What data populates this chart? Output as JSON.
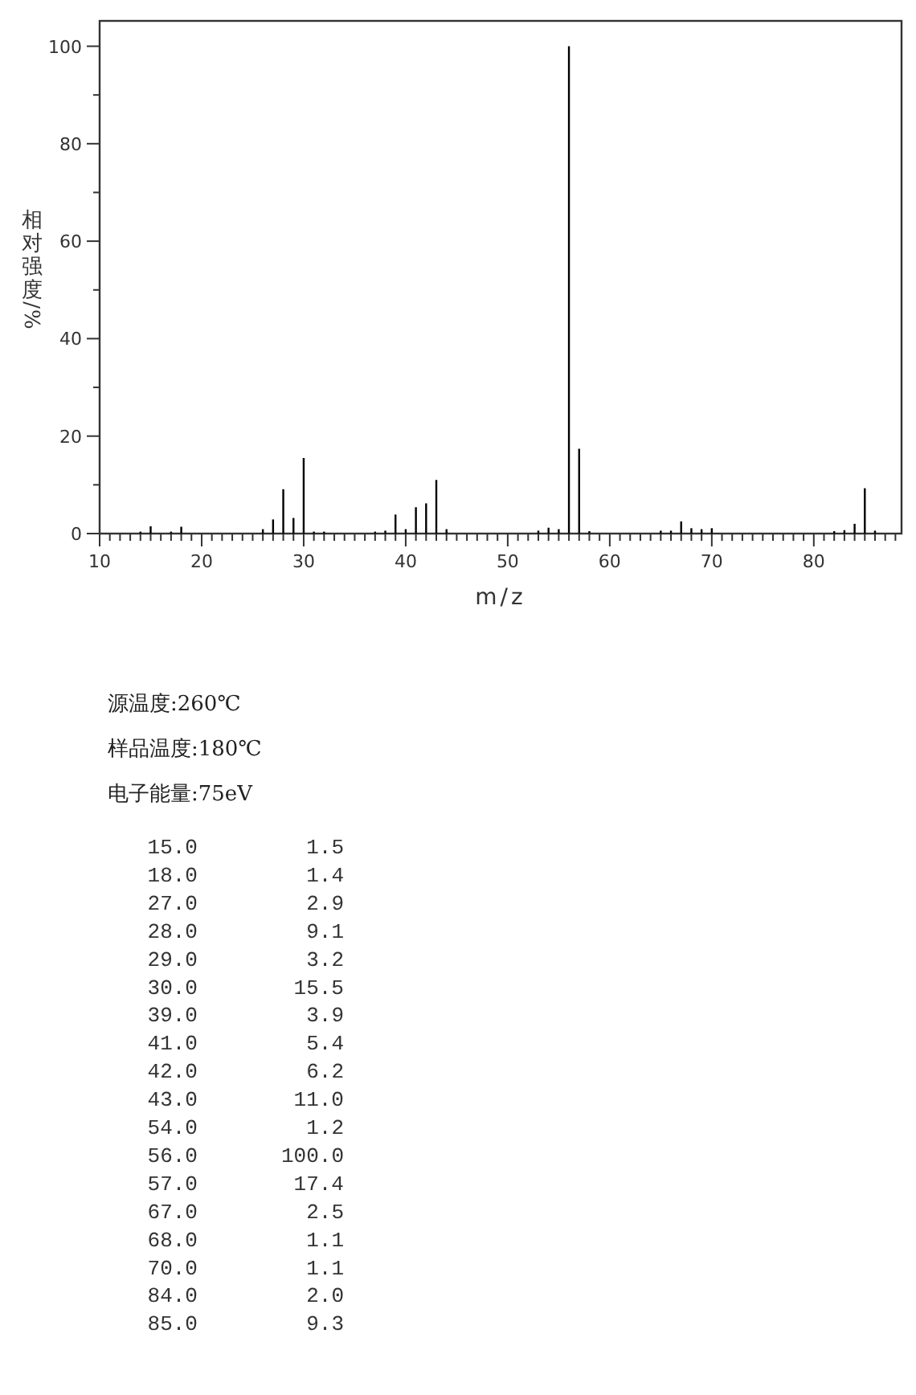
{
  "chart_data": [
    {
      "type": "bar",
      "xlabel": "m/z",
      "ylabel": "相对强度/%",
      "x": [
        14.0,
        15.0,
        17.0,
        18.0,
        26.0,
        27.0,
        28.0,
        29.0,
        30.0,
        31.0,
        32.0,
        37.0,
        38.0,
        39.0,
        40.0,
        41.0,
        42.0,
        43.0,
        44.0,
        53.0,
        54.0,
        55.0,
        56.0,
        57.0,
        58.0,
        65.0,
        66.0,
        67.0,
        68.0,
        69.0,
        70.0,
        82.0,
        83.0,
        84.0,
        85.0,
        86.0
      ],
      "values": [
        0.4,
        1.5,
        0.4,
        1.4,
        0.9,
        2.9,
        9.1,
        3.2,
        15.5,
        0.4,
        0.4,
        0.4,
        0.6,
        3.9,
        0.9,
        5.4,
        6.2,
        11.0,
        0.9,
        0.6,
        1.2,
        0.9,
        100.0,
        17.4,
        0.5,
        0.6,
        0.6,
        2.5,
        1.1,
        0.9,
        1.1,
        0.5,
        0.7,
        2.0,
        9.3,
        0.6
      ],
      "color": "#000000",
      "xlim": [
        10,
        88.6
      ],
      "ylim": [
        0,
        105.2
      ],
      "xticks": [
        10,
        {
          "value": 11,
          "label": null
        },
        {
          "value": 12,
          "label": null
        },
        {
          "value": 13,
          "label": null
        },
        {
          "value": 14,
          "label": null
        },
        {
          "value": 15,
          "label": null
        },
        {
          "value": 16,
          "label": null
        },
        {
          "value": 17,
          "label": null
        },
        {
          "value": 18,
          "label": null
        },
        {
          "value": 19,
          "label": null
        },
        20,
        {
          "value": 21,
          "label": null
        },
        {
          "value": 22,
          "label": null
        },
        {
          "value": 23,
          "label": null
        },
        {
          "value": 24,
          "label": null
        },
        {
          "value": 25,
          "label": null
        },
        {
          "value": 26,
          "label": null
        },
        {
          "value": 27,
          "label": null
        },
        {
          "value": 28,
          "label": null
        },
        {
          "value": 29,
          "label": null
        },
        30,
        {
          "value": 31,
          "label": null
        },
        {
          "value": 32,
          "label": null
        },
        {
          "value": 33,
          "label": null
        },
        {
          "value": 34,
          "label": null
        },
        {
          "value": 35,
          "label": null
        },
        {
          "value": 36,
          "label": null
        },
        {
          "value": 37,
          "label": null
        },
        {
          "value": 38,
          "label": null
        },
        {
          "value": 39,
          "label": null
        },
        40,
        {
          "value": 41,
          "label": null
        },
        {
          "value": 42,
          "label": null
        },
        {
          "value": 43,
          "label": null
        },
        {
          "value": 44,
          "label": null
        },
        {
          "value": 45,
          "label": null
        },
        {
          "value": 46,
          "label": null
        },
        {
          "value": 47,
          "label": null
        },
        {
          "value": 48,
          "label": null
        },
        {
          "value": 49,
          "label": null
        },
        50,
        {
          "value": 51,
          "label": null
        },
        {
          "value": 52,
          "label": null
        },
        {
          "value": 53,
          "label": null
        },
        {
          "value": 54,
          "label": null
        },
        {
          "value": 55,
          "label": null
        },
        {
          "value": 56,
          "label": null
        },
        {
          "value": 57,
          "label": null
        },
        {
          "value": 58,
          "label": null
        },
        {
          "value": 59,
          "label": null
        },
        60,
        {
          "value": 61,
          "label": null
        },
        {
          "value": 62,
          "label": null
        },
        {
          "value": 63,
          "label": null
        },
        {
          "value": 64,
          "label": null
        },
        {
          "value": 65,
          "label": null
        },
        {
          "value": 66,
          "label": null
        },
        {
          "value": 67,
          "label": null
        },
        {
          "value": 68,
          "label": null
        },
        {
          "value": 69,
          "label": null
        },
        70,
        {
          "value": 71,
          "label": null
        },
        {
          "value": 72,
          "label": null
        },
        {
          "value": 73,
          "label": null
        },
        {
          "value": 74,
          "label": null
        },
        {
          "value": 75,
          "label": null
        },
        {
          "value": 76,
          "label": null
        },
        {
          "value": 77,
          "label": null
        },
        {
          "value": 78,
          "label": null
        },
        {
          "value": 79,
          "label": null
        },
        80,
        {
          "value": 81,
          "label": null
        },
        {
          "value": 82,
          "label": null
        },
        {
          "value": 83,
          "label": null
        },
        {
          "value": 84,
          "label": null
        },
        {
          "value": 85,
          "label": null
        },
        {
          "value": 86,
          "label": null
        },
        {
          "value": 87,
          "label": null
        },
        {
          "value": 88,
          "label": null
        }
      ],
      "yticks": [
        0,
        {
          "value": 10,
          "label": null
        },
        20,
        {
          "value": 30,
          "label": null
        },
        40,
        {
          "value": 50,
          "label": null
        },
        60,
        {
          "value": 70,
          "label": null
        },
        80,
        {
          "value": 90,
          "label": null
        },
        100
      ]
    },
    {
      "type": "other",
      "annotations": [
        "源温度:260℃",
        "样品温度:180℃",
        "电子能量:75eV"
      ],
      "categories": [
        "15.0",
        "18.0",
        "27.0",
        "28.0",
        "29.0",
        "30.0",
        "39.0",
        "41.0",
        "42.0",
        "43.0",
        "54.0",
        "56.0",
        "57.0",
        "67.0",
        "68.0",
        "70.0",
        "84.0",
        "85.0"
      ],
      "value_labels": [
        "1.5",
        "1.4",
        "2.9",
        "9.1",
        "3.2",
        "15.5",
        "3.9",
        "5.4",
        "6.2",
        "11.0",
        "1.2",
        "100.0",
        "17.4",
        "2.5",
        "1.1",
        "1.1",
        "2.0",
        "9.3"
      ]
    }
  ]
}
